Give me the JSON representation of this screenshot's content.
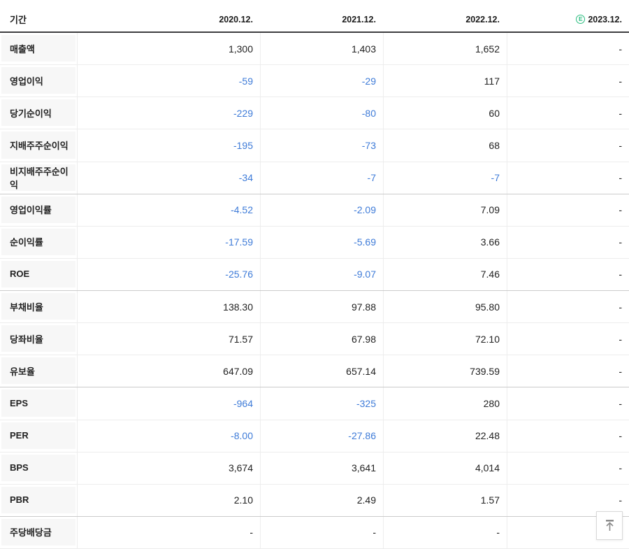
{
  "colors": {
    "negative_value": "#3e7bd8",
    "positive_value": "#222222",
    "estimate_green": "#2abd7f",
    "header_border": "#3e3e40",
    "row_border": "#ededed",
    "group_border": "#cbcbcb",
    "label_background": "#f7f7f7"
  },
  "table": {
    "period_label": "기간",
    "columns": [
      "2020.12.",
      "2021.12.",
      "2022.12.",
      "2023.12."
    ],
    "estimate_column_index": 3,
    "estimate_badge": "E",
    "rows": [
      {
        "label": "매출액",
        "values": [
          "1,300",
          "1,403",
          "1,652",
          "-"
        ]
      },
      {
        "label": "영업이익",
        "values": [
          "-59",
          "-29",
          "117",
          "-"
        ]
      },
      {
        "label": "당기순이익",
        "values": [
          "-229",
          "-80",
          "60",
          "-"
        ]
      },
      {
        "label": "지배주주순이익",
        "values": [
          "-195",
          "-73",
          "68",
          "-"
        ]
      },
      {
        "label": "비지배주주순이익",
        "values": [
          "-34",
          "-7",
          "-7",
          "-"
        ],
        "group_end": true
      },
      {
        "label": "영업이익률",
        "values": [
          "-4.52",
          "-2.09",
          "7.09",
          "-"
        ]
      },
      {
        "label": "순이익률",
        "values": [
          "-17.59",
          "-5.69",
          "3.66",
          "-"
        ]
      },
      {
        "label": "ROE",
        "values": [
          "-25.76",
          "-9.07",
          "7.46",
          "-"
        ],
        "group_end": true
      },
      {
        "label": "부채비율",
        "values": [
          "138.30",
          "97.88",
          "95.80",
          "-"
        ]
      },
      {
        "label": "당좌비율",
        "values": [
          "71.57",
          "67.98",
          "72.10",
          "-"
        ]
      },
      {
        "label": "유보율",
        "values": [
          "647.09",
          "657.14",
          "739.59",
          "-"
        ],
        "group_end": true
      },
      {
        "label": "EPS",
        "values": [
          "-964",
          "-325",
          "280",
          "-"
        ]
      },
      {
        "label": "PER",
        "values": [
          "-8.00",
          "-27.86",
          "22.48",
          "-"
        ]
      },
      {
        "label": "BPS",
        "values": [
          "3,674",
          "3,641",
          "4,014",
          "-"
        ]
      },
      {
        "label": "PBR",
        "values": [
          "2.10",
          "2.49",
          "1.57",
          "-"
        ],
        "group_end": true
      },
      {
        "label": "주당배당금",
        "values": [
          "-",
          "-",
          "-",
          "-"
        ]
      }
    ]
  },
  "scroll_top_button": {
    "icon": "arrow-up-to-top"
  }
}
